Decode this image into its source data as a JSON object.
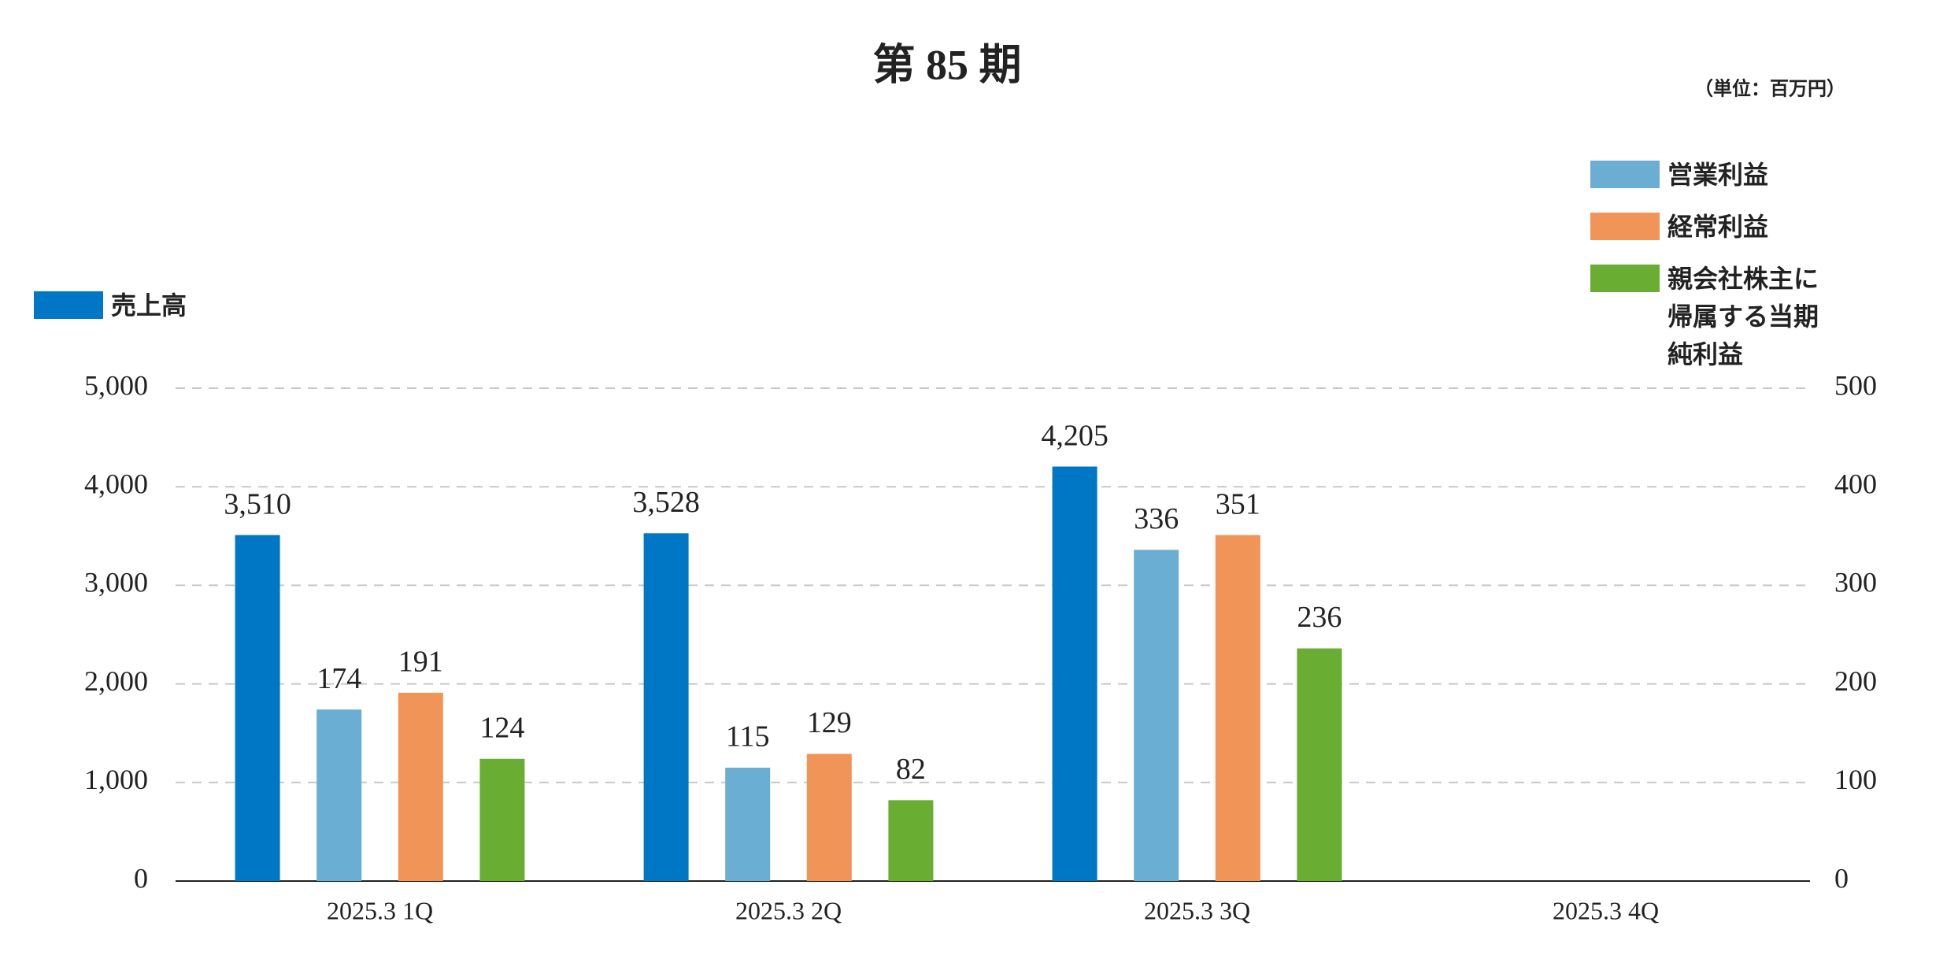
{
  "chart_data": {
    "type": "bar",
    "title": "第 85 期",
    "unit_label": "（単位：百万円）",
    "categories": [
      "2025.3 1Q",
      "2025.3 2Q",
      "2025.3 3Q",
      "2025.3 4Q"
    ],
    "series": [
      {
        "name": "売上高",
        "color": "#0077c4",
        "values": [
          3510,
          3528,
          4205,
          null
        ],
        "value_labels": [
          "3,510",
          "3,528",
          "4,205",
          null
        ]
      },
      {
        "name": "営業利益",
        "color": "#6aaed3",
        "axis": "y2",
        "values": [
          174,
          115,
          336,
          null
        ]
      },
      {
        "name": "経常利益",
        "color": "#f09458",
        "axis": "y2",
        "values": [
          191,
          129,
          351,
          null
        ]
      },
      {
        "name": "親会社株主に帰属する当期純利益",
        "color": "#69ad32",
        "axis": "y2",
        "values": [
          124,
          82,
          236,
          null
        ]
      }
    ],
    "ylim": [
      0,
      5000
    ],
    "yticks": [
      0,
      {
        "value": 1000,
        "label": "1,000"
      },
      {
        "value": 2000,
        "label": "2,000"
      },
      {
        "value": 3000,
        "label": "3,000"
      },
      {
        "value": 4000,
        "label": "4,000"
      },
      {
        "value": 5000,
        "label": "5,000"
      }
    ],
    "y2lim": [
      0,
      500
    ],
    "y2ticks": [
      0,
      100,
      200,
      300,
      400,
      500
    ],
    "grid": true
  }
}
